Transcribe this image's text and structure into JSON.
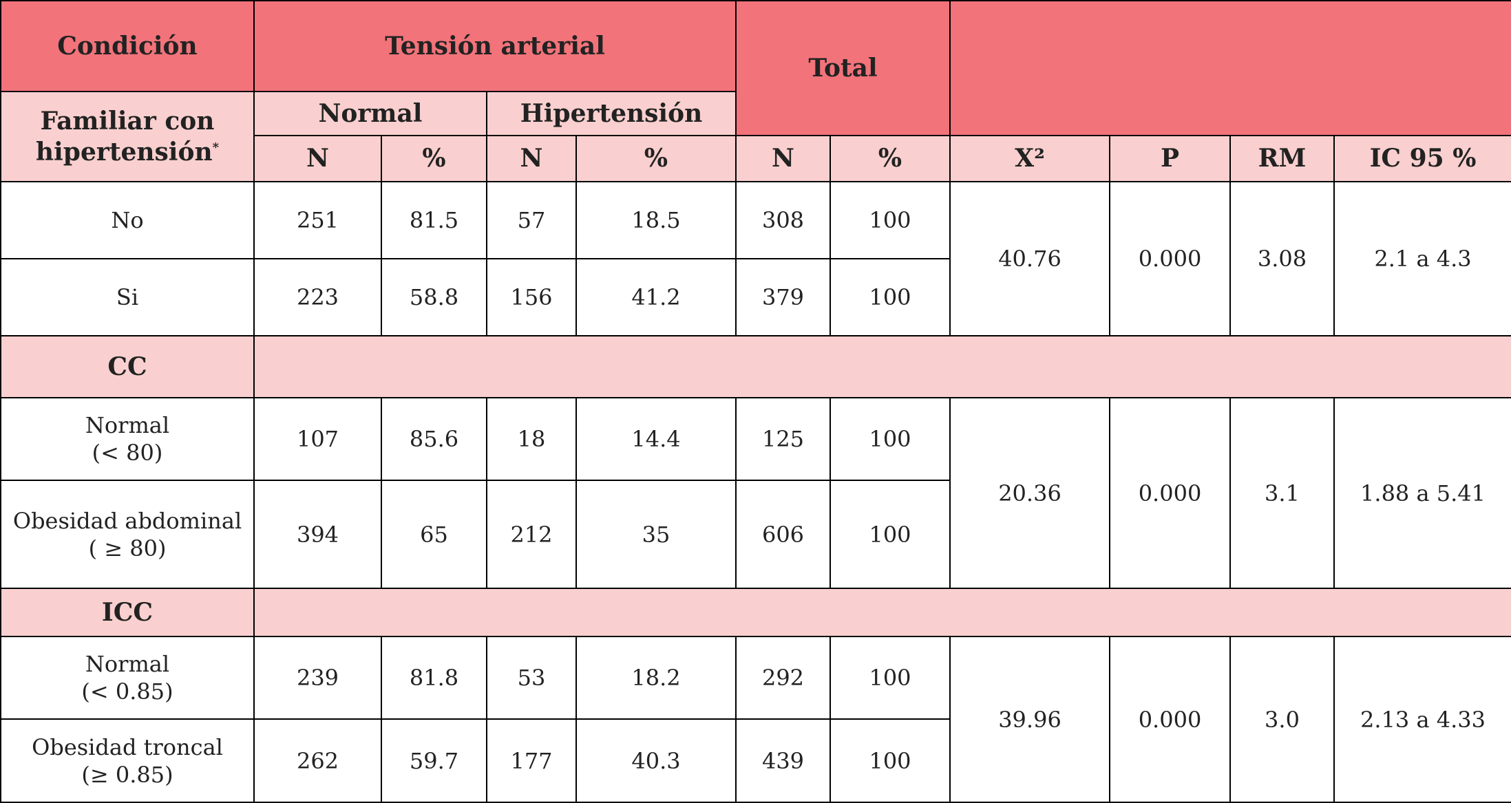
{
  "header": {
    "condicion": "Condición",
    "tension_arterial": "Tensión arterial",
    "total": "Total",
    "familiar": "Familiar con hipertensión",
    "familiar_note": "*",
    "normal": "Normal",
    "hipertension": "Hipertensión",
    "subcols": [
      "N",
      "%",
      "N",
      "%",
      "N",
      "%",
      "X²",
      "P",
      "RM",
      "IC 95 %"
    ]
  },
  "groups": [
    {
      "rows": [
        {
          "label": [
            "No"
          ],
          "cells": [
            "251",
            "81.5",
            "57",
            "18.5",
            "308",
            "100"
          ]
        },
        {
          "label": [
            "Si"
          ],
          "cells": [
            "223",
            "58.8",
            "156",
            "41.2",
            "379",
            "100"
          ]
        }
      ],
      "stats": [
        "40.76",
        "0.000",
        "3.08",
        "2.1 a 4.3"
      ]
    },
    {
      "title": "CC",
      "rows": [
        {
          "label": [
            "Normal",
            "(< 80)"
          ],
          "cells": [
            "107",
            "85.6",
            "18",
            "14.4",
            "125",
            "100"
          ]
        },
        {
          "label": [
            "Obesidad abdominal",
            "( ≥ 80)"
          ],
          "cells": [
            "394",
            "65",
            "212",
            "35",
            "606",
            "100"
          ]
        }
      ],
      "stats": [
        "20.36",
        "0.000",
        "3.1",
        "1.88 a 5.41"
      ]
    },
    {
      "title": "ICC",
      "rows": [
        {
          "label": [
            "Normal",
            "(< 0.85)"
          ],
          "cells": [
            "239",
            "81.8",
            "53",
            "18.2",
            "292",
            "100"
          ]
        },
        {
          "label": [
            "Obesidad troncal",
            "(≥ 0.85)"
          ],
          "cells": [
            "262",
            "59.7",
            "177",
            "40.3",
            "439",
            "100"
          ]
        }
      ],
      "stats": [
        "39.96",
        "0.000",
        "3.0",
        "2.13 a 4.33"
      ]
    }
  ]
}
